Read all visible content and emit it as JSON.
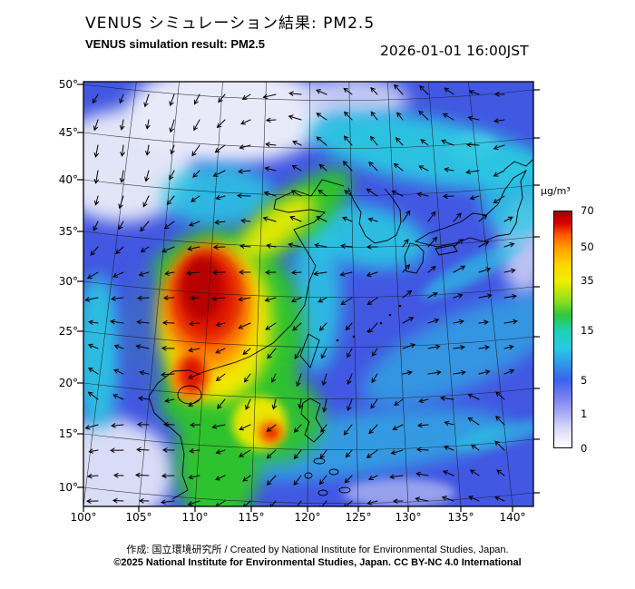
{
  "header": {
    "title_ja": "VENUS シミュレーション結果: PM2.5",
    "title_en": "VENUS simulation result: PM2.5",
    "timestamp": "2026-01-01 16:00JST"
  },
  "axes": {
    "lat_labels": [
      "50°",
      "45°",
      "40°",
      "35°",
      "30°",
      "25°",
      "20°",
      "15°",
      "10°"
    ],
    "lon_labels": [
      "100°",
      "105°",
      "110°",
      "115°",
      "120°",
      "125°",
      "130°",
      "135°",
      "140°"
    ]
  },
  "colorbar": {
    "unit_label": "μg/m³",
    "tick_labels": [
      "70",
      "50",
      "35",
      "15",
      "5",
      "1",
      "0"
    ]
  },
  "footer": {
    "credit": "作成: 国立環境研究所 / Created by National Institute for Environmental Studies, Japan.",
    "license": "©2025 National Institute for Environmental Studies, Japan. CC BY-NC 4.0 International"
  },
  "chart_data": {
    "type": "heatmap",
    "title": "VENUS simulation result: PM2.5",
    "variable": "PM2.5 concentration",
    "unit": "μg/m³",
    "valid_time": "2026-01-01 16:00JST",
    "x_axis": {
      "label": "longitude",
      "ticks": [
        100,
        105,
        110,
        115,
        120,
        125,
        130,
        135,
        140
      ]
    },
    "y_axis": {
      "label": "latitude",
      "ticks": [
        50,
        45,
        40,
        35,
        30,
        25,
        20,
        15,
        10
      ]
    },
    "colorbar": {
      "levels": [
        0,
        1,
        5,
        15,
        35,
        50,
        70
      ],
      "colors": [
        "#ffffff",
        "#a8acf4",
        "#3a62ee",
        "#1ed2b4",
        "#f0ee00",
        "#ff9c00",
        "#a00000"
      ],
      "position": "right"
    },
    "overlays": [
      "wind vector arrows",
      "coastlines",
      "lat-lon graticule"
    ],
    "field_summary": "Maximum PM2.5 (red, ~70 μg/m³) over east-central China near 108–118E / 25–33N, surrounded by orange-yellow-green gradient; mostly blue (1–5 μg/m³) with cyan bands (5–15 μg/m³) over the seas, Korea and Japan; near-zero (white) areas in the northwest and top-center."
  }
}
